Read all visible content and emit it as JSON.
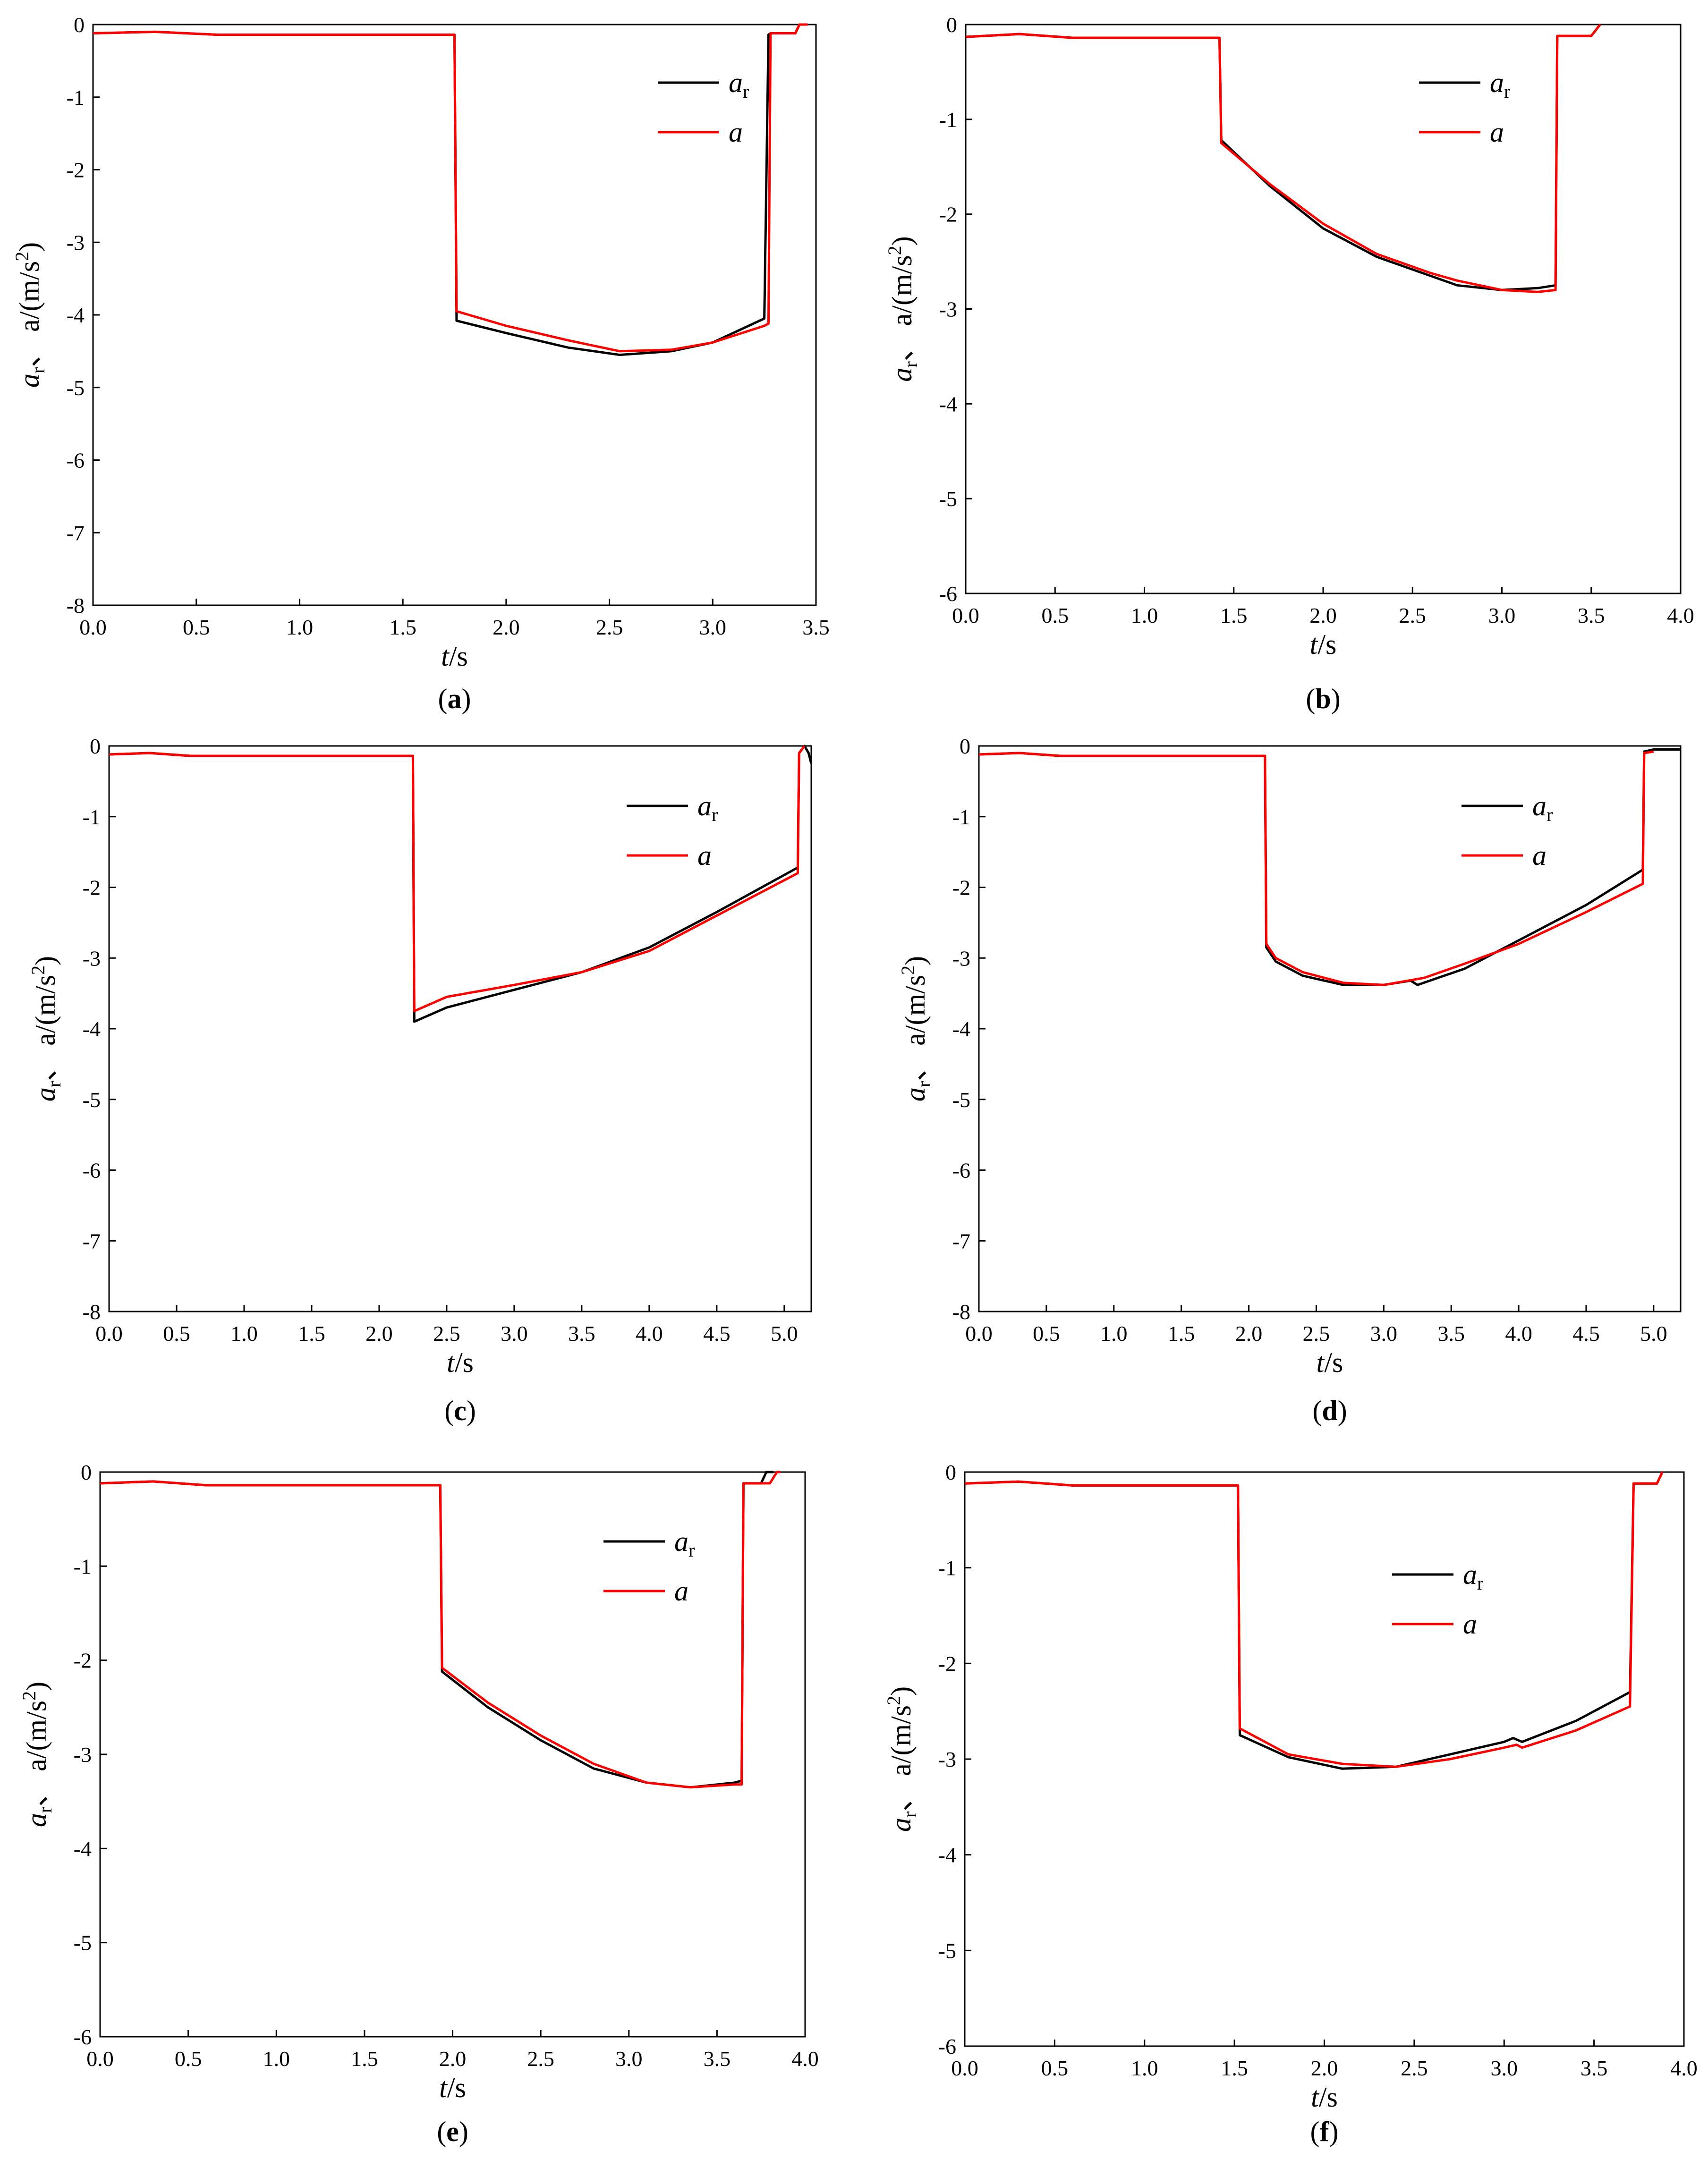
{
  "colors": {
    "a_r": "#000000",
    "a": "#ff0000",
    "axis": "#000000"
  },
  "chart_data": [
    {
      "type": "line",
      "panel_label": "a",
      "xlabel_var": "t",
      "xlabel_unit": "/s",
      "ylabel_main": "a",
      "ylabel_sub": "r",
      "ylabel_rest": "、 a/(m/s",
      "ylabel_sup": "2",
      "ylabel_close": ")",
      "xlim": [
        0,
        3.5
      ],
      "ylim": [
        -8,
        0
      ],
      "xticks": [
        "0.0",
        "0.5",
        "1.0",
        "1.5",
        "2.0",
        "2.5",
        "3.0",
        "3.5"
      ],
      "yticks": [
        "0",
        "-1",
        "-2",
        "-3",
        "-4",
        "-5",
        "-6",
        "-7",
        "-8"
      ],
      "legend_position": "top-right",
      "series": [
        {
          "name_main": "a",
          "name_sub": "r",
          "color": "#000000",
          "x": [
            0,
            0.3,
            0.6,
            1.75,
            1.76,
            2.0,
            2.3,
            2.55,
            2.8,
            3.0,
            3.25,
            3.27,
            3.28,
            3.4,
            3.42,
            3.46
          ],
          "y": [
            -0.12,
            -0.1,
            -0.14,
            -0.14,
            -4.08,
            -4.25,
            -4.45,
            -4.55,
            -4.5,
            -4.38,
            -4.05,
            -0.14,
            -0.12,
            -0.12,
            0,
            0
          ]
        },
        {
          "name_main": "a",
          "name_sub": "",
          "color": "#ff0000",
          "x": [
            0,
            0.3,
            0.6,
            1.75,
            1.76,
            2.0,
            2.3,
            2.55,
            2.8,
            3.0,
            3.25,
            3.27,
            3.28,
            3.4,
            3.42,
            3.46
          ],
          "y": [
            -0.12,
            -0.1,
            -0.14,
            -0.14,
            -3.95,
            -4.15,
            -4.35,
            -4.5,
            -4.48,
            -4.38,
            -4.15,
            -4.12,
            -0.12,
            -0.12,
            0,
            0
          ]
        }
      ]
    },
    {
      "type": "line",
      "panel_label": "b",
      "xlabel_var": "t",
      "xlabel_unit": "/s",
      "ylabel_main": "a",
      "ylabel_sub": "r",
      "ylabel_rest": "、 a/(m/s",
      "ylabel_sup": "2",
      "ylabel_close": ")",
      "xlim": [
        0,
        4.0
      ],
      "ylim": [
        -6,
        0
      ],
      "xticks": [
        "0.0",
        "0.5",
        "1.0",
        "1.5",
        "2.0",
        "2.5",
        "3.0",
        "3.5",
        "4.0"
      ],
      "yticks": [
        "0",
        "-1",
        "-2",
        "-3",
        "-4",
        "-5",
        "-6"
      ],
      "legend_position": "top-right",
      "series": [
        {
          "name_main": "a",
          "name_sub": "r",
          "color": "#000000",
          "x": [
            0,
            0.3,
            0.6,
            1.42,
            1.43,
            1.7,
            2.0,
            2.3,
            2.6,
            2.75,
            3.0,
            3.2,
            3.3,
            3.31,
            3.5,
            3.55
          ],
          "y": [
            -0.13,
            -0.1,
            -0.14,
            -0.14,
            -1.22,
            -1.7,
            -2.15,
            -2.45,
            -2.65,
            -2.75,
            -2.8,
            -2.78,
            -2.75,
            -0.12,
            -0.12,
            0
          ]
        },
        {
          "name_main": "a",
          "name_sub": "",
          "color": "#ff0000",
          "x": [
            0,
            0.3,
            0.6,
            1.42,
            1.43,
            1.7,
            2.0,
            2.3,
            2.6,
            2.75,
            3.0,
            3.2,
            3.3,
            3.31,
            3.5,
            3.55
          ],
          "y": [
            -0.13,
            -0.1,
            -0.14,
            -0.14,
            -1.25,
            -1.68,
            -2.1,
            -2.42,
            -2.62,
            -2.7,
            -2.8,
            -2.82,
            -2.8,
            -0.12,
            -0.12,
            0
          ]
        }
      ]
    },
    {
      "type": "line",
      "panel_label": "c",
      "xlabel_var": "t",
      "xlabel_unit": "/s",
      "ylabel_main": "a",
      "ylabel_sub": "r",
      "ylabel_rest": "、 a/(m/s",
      "ylabel_sup": "2",
      "ylabel_close": ")",
      "xlim": [
        0,
        5.2
      ],
      "ylim": [
        -8,
        0
      ],
      "xticks": [
        "0.0",
        "0.5",
        "1.0",
        "1.5",
        "2.0",
        "2.5",
        "3.0",
        "3.5",
        "4.0",
        "4.5",
        "5.0"
      ],
      "yticks": [
        "0",
        "-1",
        "-2",
        "-3",
        "-4",
        "-5",
        "-6",
        "-7",
        "-8"
      ],
      "legend_position": "top-right",
      "series": [
        {
          "name_main": "a",
          "name_sub": "r",
          "color": "#000000",
          "x": [
            0,
            0.3,
            0.6,
            2.25,
            2.26,
            2.5,
            3.0,
            3.5,
            4.0,
            4.5,
            5.1,
            5.11,
            5.15,
            5.18,
            5.2
          ],
          "y": [
            -0.12,
            -0.1,
            -0.14,
            -0.14,
            -3.9,
            -3.7,
            -3.45,
            -3.2,
            -2.85,
            -2.35,
            -1.72,
            -0.1,
            0,
            -0.1,
            -0.25
          ]
        },
        {
          "name_main": "a",
          "name_sub": "",
          "color": "#ff0000",
          "x": [
            0,
            0.3,
            0.6,
            2.25,
            2.26,
            2.5,
            3.0,
            3.5,
            4.0,
            4.5,
            5.1,
            5.11,
            5.15
          ],
          "y": [
            -0.12,
            -0.1,
            -0.14,
            -0.14,
            -3.75,
            -3.55,
            -3.38,
            -3.2,
            -2.9,
            -2.4,
            -1.8,
            -0.1,
            0
          ]
        }
      ]
    },
    {
      "type": "line",
      "panel_label": "d",
      "xlabel_var": "t",
      "xlabel_unit": "/s",
      "ylabel_main": "a",
      "ylabel_sub": "r",
      "ylabel_rest": "、 a/(m/s",
      "ylabel_sup": "2",
      "ylabel_close": ")",
      "xlim": [
        0,
        5.2
      ],
      "ylim": [
        -8,
        0
      ],
      "xticks": [
        "0.0",
        "0.5",
        "1.0",
        "1.5",
        "2.0",
        "2.5",
        "3.0",
        "3.5",
        "4.0",
        "4.5",
        "5.0"
      ],
      "yticks": [
        "0",
        "-1",
        "-2",
        "-3",
        "-4",
        "-5",
        "-6",
        "-7",
        "-8"
      ],
      "legend_position": "top-right",
      "series": [
        {
          "name_main": "a",
          "name_sub": "r",
          "color": "#000000",
          "x": [
            0,
            0.3,
            0.6,
            2.12,
            2.13,
            2.2,
            2.4,
            2.7,
            3.0,
            3.2,
            3.25,
            3.6,
            4.0,
            4.5,
            4.92,
            4.93,
            5.0,
            5.2
          ],
          "y": [
            -0.12,
            -0.1,
            -0.14,
            -0.14,
            -2.85,
            -3.05,
            -3.25,
            -3.38,
            -3.38,
            -3.32,
            -3.38,
            -3.15,
            -2.75,
            -2.25,
            -1.75,
            -0.08,
            -0.05,
            -0.05
          ]
        },
        {
          "name_main": "a",
          "name_sub": "",
          "color": "#ff0000",
          "x": [
            0,
            0.3,
            0.6,
            2.12,
            2.13,
            2.2,
            2.4,
            2.7,
            3.0,
            3.3,
            3.6,
            4.0,
            4.5,
            4.92,
            4.93,
            5.0
          ],
          "y": [
            -0.12,
            -0.1,
            -0.14,
            -0.14,
            -2.8,
            -3.0,
            -3.2,
            -3.35,
            -3.38,
            -3.28,
            -3.08,
            -2.8,
            -2.35,
            -1.95,
            -0.1,
            -0.08
          ]
        }
      ]
    },
    {
      "type": "line",
      "panel_label": "e",
      "xlabel_var": "t",
      "xlabel_unit": "/s",
      "ylabel_main": "a",
      "ylabel_sub": "r",
      "ylabel_rest": "、 a/(m/s",
      "ylabel_sup": "2",
      "ylabel_close": ")",
      "xlim": [
        0,
        4.0
      ],
      "ylim": [
        -6,
        0
      ],
      "xticks": [
        "0.0",
        "0.5",
        "1.0",
        "1.5",
        "2.0",
        "2.5",
        "3.0",
        "3.5",
        "4.0"
      ],
      "yticks": [
        "0",
        "-1",
        "-2",
        "-3",
        "-4",
        "-5",
        "-6"
      ],
      "legend_position": "top-right",
      "series": [
        {
          "name_main": "a",
          "name_sub": "r",
          "color": "#000000",
          "x": [
            0,
            0.3,
            0.6,
            1.93,
            1.94,
            2.2,
            2.5,
            2.8,
            3.1,
            3.35,
            3.6,
            3.64,
            3.65,
            3.75,
            3.78,
            3.82
          ],
          "y": [
            -0.12,
            -0.1,
            -0.14,
            -0.14,
            -2.12,
            -2.5,
            -2.85,
            -3.15,
            -3.3,
            -3.35,
            -3.3,
            -3.28,
            -0.12,
            -0.12,
            0,
            0
          ]
        },
        {
          "name_main": "a",
          "name_sub": "",
          "color": "#ff0000",
          "x": [
            0,
            0.3,
            0.6,
            1.93,
            1.94,
            2.2,
            2.5,
            2.8,
            3.1,
            3.35,
            3.6,
            3.64,
            3.65,
            3.8,
            3.84,
            3.86
          ],
          "y": [
            -0.12,
            -0.1,
            -0.14,
            -0.14,
            -2.08,
            -2.45,
            -2.8,
            -3.1,
            -3.3,
            -3.35,
            -3.32,
            -3.32,
            -0.12,
            -0.12,
            0,
            0
          ]
        }
      ]
    },
    {
      "type": "line",
      "panel_label": "f",
      "xlabel_var": "t",
      "xlabel_unit": "/s",
      "ylabel_main": "a",
      "ylabel_sub": "r",
      "ylabel_rest": "、 a/(m/s",
      "ylabel_sup": "2",
      "ylabel_close": ")",
      "xlim": [
        0,
        4.0
      ],
      "ylim": [
        -6,
        0
      ],
      "xticks": [
        "0.0",
        "0.5",
        "1.0",
        "1.5",
        "2.0",
        "2.5",
        "3.0",
        "3.5",
        "4.0"
      ],
      "yticks": [
        "0",
        "-1",
        "-2",
        "-3",
        "-4",
        "-5",
        "-6"
      ],
      "legend_position": "top-right",
      "series": [
        {
          "name_main": "a",
          "name_sub": "r",
          "color": "#000000",
          "x": [
            0,
            0.3,
            0.6,
            1.52,
            1.53,
            1.8,
            2.1,
            2.4,
            2.7,
            3.0,
            3.05,
            3.1,
            3.4,
            3.7,
            3.72,
            3.85,
            3.88
          ],
          "y": [
            -0.12,
            -0.1,
            -0.14,
            -0.14,
            -2.75,
            -2.98,
            -3.1,
            -3.08,
            -2.95,
            -2.82,
            -2.78,
            -2.82,
            -2.6,
            -2.3,
            -0.12,
            -0.12,
            0
          ]
        },
        {
          "name_main": "a",
          "name_sub": "",
          "color": "#ff0000",
          "x": [
            0,
            0.3,
            0.6,
            1.52,
            1.53,
            1.8,
            2.1,
            2.4,
            2.7,
            3.0,
            3.07,
            3.1,
            3.4,
            3.7,
            3.72,
            3.85,
            3.88
          ],
          "y": [
            -0.12,
            -0.1,
            -0.14,
            -0.14,
            -2.68,
            -2.95,
            -3.05,
            -3.08,
            -3.0,
            -2.88,
            -2.85,
            -2.88,
            -2.7,
            -2.45,
            -0.12,
            -0.12,
            0
          ]
        }
      ]
    }
  ]
}
